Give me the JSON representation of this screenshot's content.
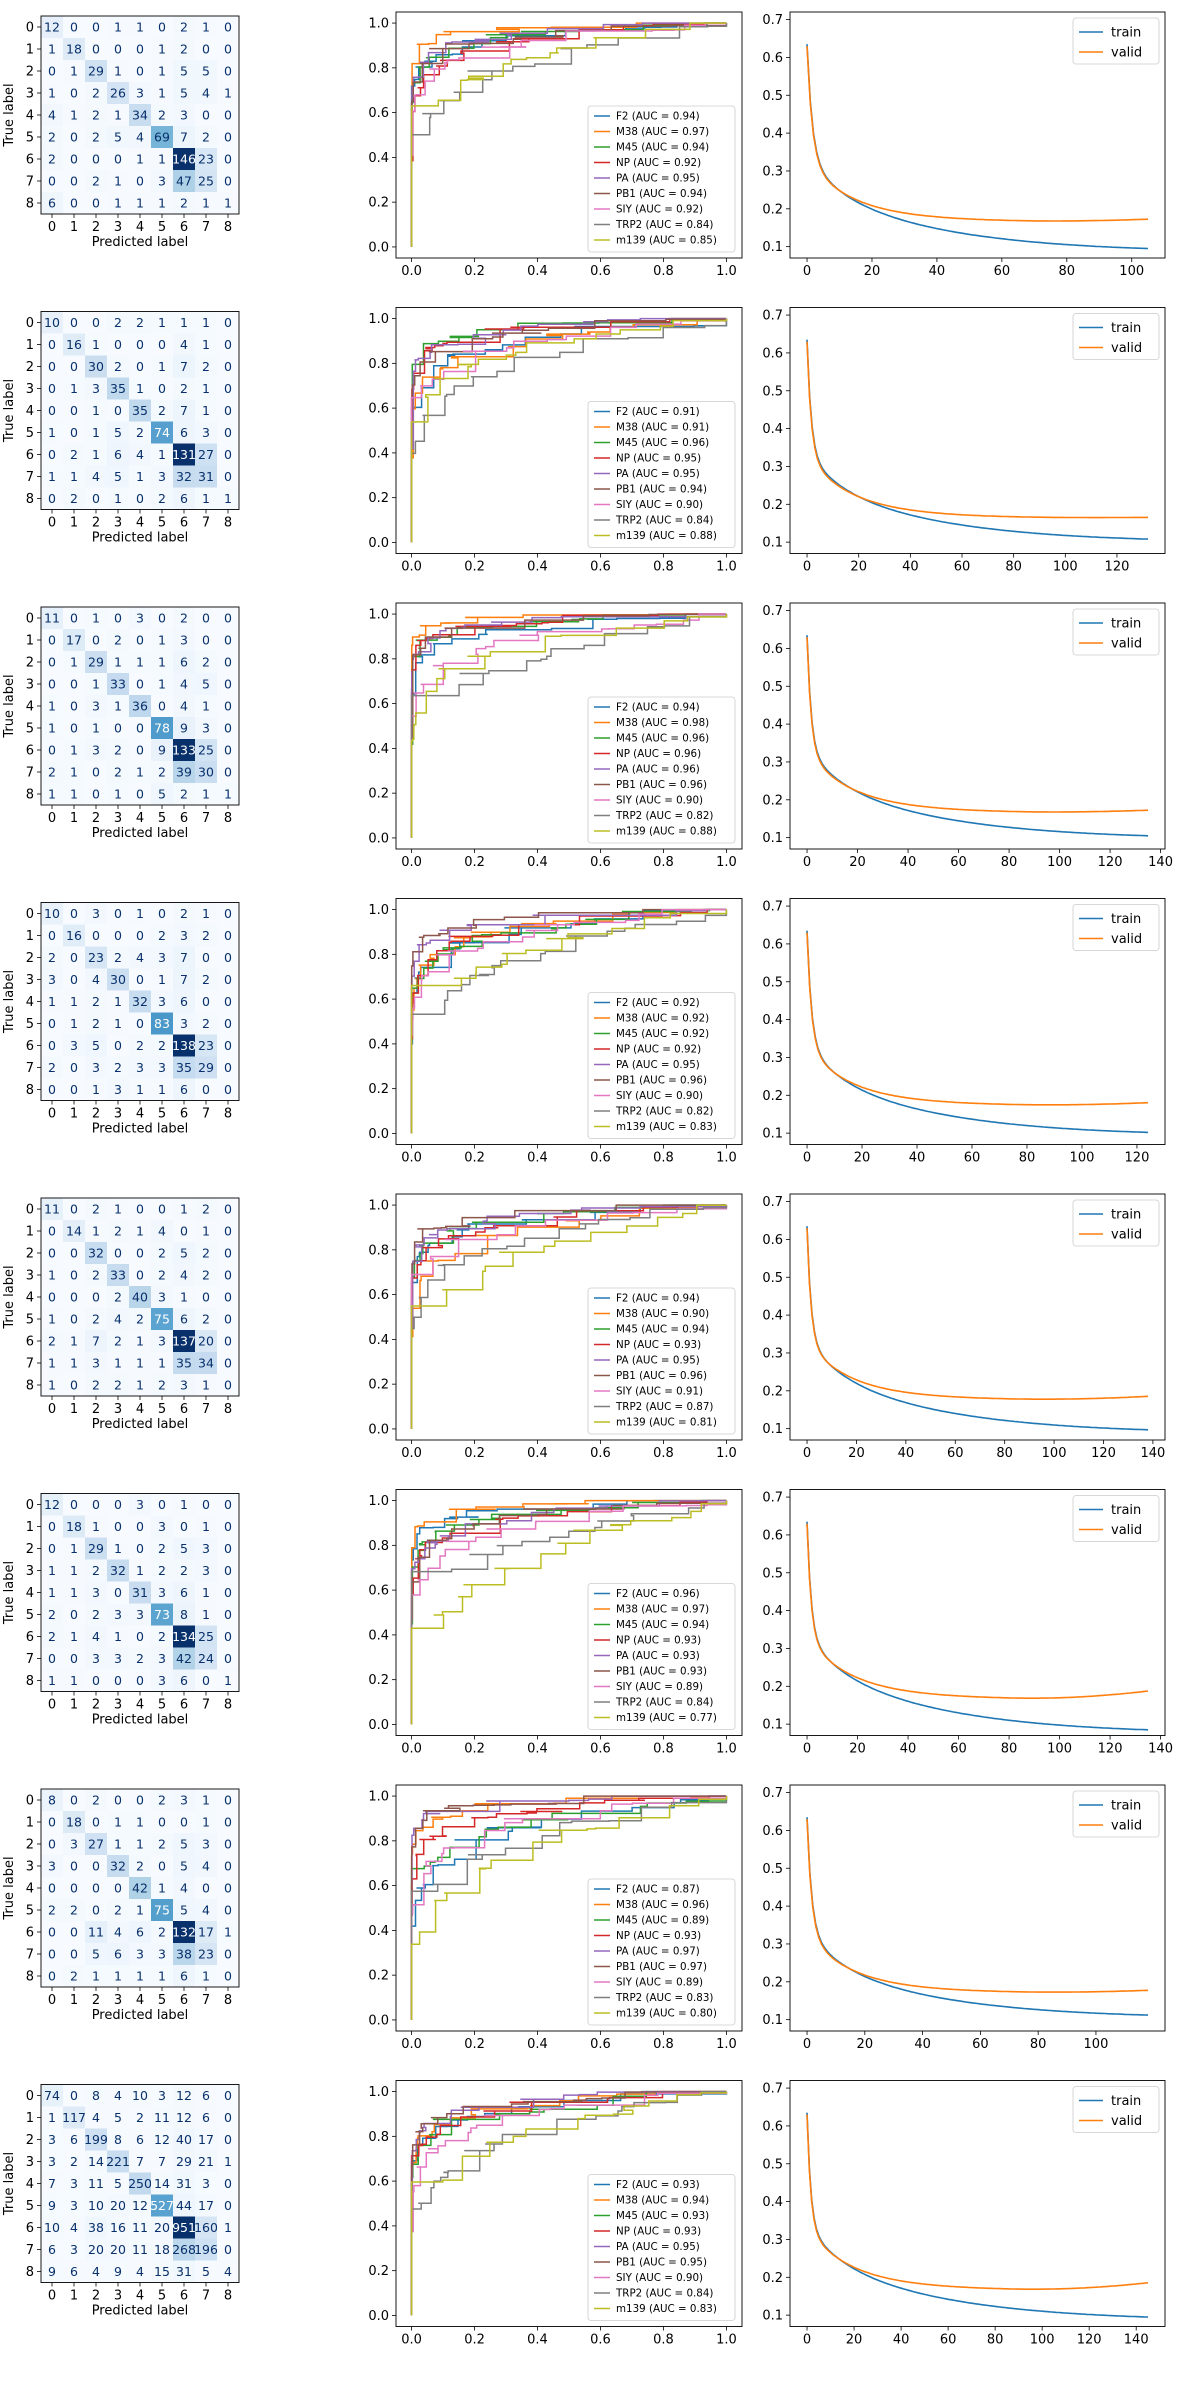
{
  "labels": {
    "true_label": "True label",
    "predicted_label": "Predicted label"
  },
  "class_ticks": [
    "0",
    "1",
    "2",
    "3",
    "4",
    "5",
    "6",
    "7",
    "8"
  ],
  "roc_classes": [
    "F2",
    "M38",
    "M45",
    "NP",
    "PA",
    "PB1",
    "SIY",
    "TRP2",
    "m139"
  ],
  "roc_colors": [
    "#1f77b4",
    "#ff7f0e",
    "#2ca02c",
    "#d62728",
    "#9467bd",
    "#8c564b",
    "#e377c2",
    "#7f7f7f",
    "#bcbd22"
  ],
  "loss_series_names": [
    "train",
    "valid"
  ],
  "loss_colors": [
    "#1f77b4",
    "#ff7f0e"
  ],
  "chart_data": [
    {
      "row": 1,
      "confusion": {
        "type": "heatmap",
        "matrix": [
          [
            12,
            0,
            0,
            1,
            1,
            0,
            2,
            1,
            0
          ],
          [
            1,
            18,
            0,
            0,
            0,
            1,
            2,
            0,
            0
          ],
          [
            0,
            1,
            29,
            1,
            0,
            1,
            5,
            5,
            0
          ],
          [
            1,
            0,
            2,
            26,
            3,
            1,
            5,
            4,
            1
          ],
          [
            4,
            1,
            2,
            1,
            34,
            2,
            3,
            0,
            0
          ],
          [
            2,
            0,
            2,
            5,
            4,
            69,
            7,
            2,
            0
          ],
          [
            2,
            0,
            0,
            0,
            1,
            1,
            146,
            23,
            0
          ],
          [
            0,
            0,
            2,
            1,
            0,
            3,
            47,
            25,
            0
          ],
          [
            6,
            0,
            0,
            1,
            1,
            1,
            2,
            1,
            1
          ]
        ]
      },
      "roc": {
        "type": "line",
        "auc": [
          "0.94",
          "0.97",
          "0.94",
          "0.92",
          "0.95",
          "0.94",
          "0.92",
          "0.84",
          "0.85"
        ]
      },
      "loss": {
        "type": "line",
        "epochs": 105,
        "xmax_tick": 100,
        "train_end": 0.095,
        "valid_min": 0.165,
        "valid_end": 0.172
      }
    },
    {
      "row": 2,
      "confusion": {
        "type": "heatmap",
        "matrix": [
          [
            10,
            0,
            0,
            2,
            2,
            1,
            1,
            1,
            0
          ],
          [
            0,
            16,
            1,
            0,
            0,
            0,
            4,
            1,
            0
          ],
          [
            0,
            0,
            30,
            2,
            0,
            1,
            7,
            2,
            0
          ],
          [
            0,
            1,
            3,
            35,
            1,
            0,
            2,
            1,
            0
          ],
          [
            0,
            0,
            1,
            0,
            35,
            2,
            7,
            1,
            0
          ],
          [
            1,
            0,
            1,
            5,
            2,
            74,
            6,
            3,
            0
          ],
          [
            0,
            2,
            1,
            6,
            4,
            1,
            131,
            27,
            0
          ],
          [
            1,
            1,
            4,
            5,
            1,
            3,
            32,
            31,
            0
          ],
          [
            0,
            2,
            0,
            1,
            0,
            2,
            6,
            1,
            1
          ]
        ]
      },
      "roc": {
        "type": "line",
        "auc": [
          "0.91",
          "0.91",
          "0.96",
          "0.95",
          "0.95",
          "0.94",
          "0.90",
          "0.84",
          "0.88"
        ]
      },
      "loss": {
        "type": "line",
        "epochs": 132,
        "xmax_tick": 120,
        "train_end": 0.108,
        "valid_min": 0.163,
        "valid_end": 0.165
      }
    },
    {
      "row": 3,
      "confusion": {
        "type": "heatmap",
        "matrix": [
          [
            11,
            0,
            1,
            0,
            3,
            0,
            2,
            0,
            0
          ],
          [
            0,
            17,
            0,
            2,
            0,
            1,
            3,
            0,
            0
          ],
          [
            0,
            1,
            29,
            1,
            1,
            1,
            6,
            2,
            0
          ],
          [
            0,
            0,
            1,
            33,
            0,
            1,
            4,
            5,
            0
          ],
          [
            1,
            0,
            3,
            1,
            36,
            0,
            4,
            1,
            0
          ],
          [
            1,
            0,
            1,
            0,
            0,
            78,
            9,
            3,
            0
          ],
          [
            0,
            1,
            3,
            2,
            0,
            9,
            133,
            25,
            0
          ],
          [
            2,
            1,
            0,
            2,
            1,
            2,
            39,
            30,
            0
          ],
          [
            1,
            1,
            0,
            1,
            0,
            5,
            2,
            1,
            1
          ]
        ]
      },
      "roc": {
        "type": "line",
        "auc": [
          "0.94",
          "0.98",
          "0.96",
          "0.96",
          "0.96",
          "0.96",
          "0.90",
          "0.82",
          "0.88"
        ]
      },
      "loss": {
        "type": "line",
        "epochs": 135,
        "xmax_tick": 140,
        "train_end": 0.105,
        "valid_min": 0.165,
        "valid_end": 0.172
      }
    },
    {
      "row": 4,
      "confusion": {
        "type": "heatmap",
        "matrix": [
          [
            10,
            0,
            3,
            0,
            1,
            0,
            2,
            1,
            0
          ],
          [
            0,
            16,
            0,
            0,
            0,
            2,
            3,
            2,
            0
          ],
          [
            2,
            0,
            23,
            2,
            4,
            3,
            7,
            0,
            0
          ],
          [
            3,
            0,
            4,
            30,
            0,
            1,
            7,
            2,
            0
          ],
          [
            1,
            1,
            2,
            1,
            32,
            3,
            6,
            0,
            0
          ],
          [
            0,
            1,
            2,
            1,
            0,
            83,
            3,
            2,
            0
          ],
          [
            0,
            3,
            5,
            0,
            2,
            2,
            138,
            23,
            0
          ],
          [
            2,
            0,
            3,
            2,
            3,
            3,
            35,
            29,
            0
          ],
          [
            0,
            0,
            1,
            3,
            1,
            1,
            6,
            0,
            0
          ]
        ]
      },
      "roc": {
        "type": "line",
        "auc": [
          "0.92",
          "0.92",
          "0.92",
          "0.92",
          "0.95",
          "0.96",
          "0.90",
          "0.82",
          "0.83"
        ]
      },
      "loss": {
        "type": "line",
        "epochs": 124,
        "xmax_tick": 120,
        "train_end": 0.102,
        "valid_min": 0.172,
        "valid_end": 0.18
      }
    },
    {
      "row": 5,
      "confusion": {
        "type": "heatmap",
        "matrix": [
          [
            11,
            0,
            2,
            1,
            0,
            0,
            1,
            2,
            0
          ],
          [
            0,
            14,
            1,
            2,
            1,
            4,
            0,
            1,
            0
          ],
          [
            0,
            0,
            32,
            0,
            0,
            2,
            5,
            2,
            0
          ],
          [
            1,
            0,
            2,
            33,
            0,
            2,
            4,
            2,
            0
          ],
          [
            0,
            0,
            0,
            2,
            40,
            3,
            1,
            0,
            0
          ],
          [
            1,
            0,
            2,
            4,
            2,
            75,
            6,
            2,
            0
          ],
          [
            2,
            1,
            7,
            2,
            1,
            3,
            137,
            20,
            0
          ],
          [
            1,
            1,
            3,
            1,
            1,
            1,
            35,
            34,
            0
          ],
          [
            1,
            0,
            2,
            2,
            1,
            2,
            3,
            1,
            0
          ]
        ]
      },
      "roc": {
        "type": "line",
        "auc": [
          "0.94",
          "0.90",
          "0.94",
          "0.93",
          "0.95",
          "0.96",
          "0.91",
          "0.87",
          "0.81"
        ]
      },
      "loss": {
        "type": "line",
        "epochs": 138,
        "xmax_tick": 140,
        "train_end": 0.097,
        "valid_min": 0.175,
        "valid_end": 0.185
      }
    },
    {
      "row": 6,
      "confusion": {
        "type": "heatmap",
        "matrix": [
          [
            12,
            0,
            0,
            0,
            3,
            0,
            1,
            0,
            0
          ],
          [
            0,
            18,
            1,
            0,
            0,
            3,
            0,
            1,
            0
          ],
          [
            0,
            1,
            29,
            1,
            0,
            2,
            5,
            3,
            0
          ],
          [
            1,
            1,
            2,
            32,
            1,
            2,
            2,
            3,
            0
          ],
          [
            1,
            1,
            3,
            0,
            31,
            3,
            6,
            1,
            0
          ],
          [
            2,
            0,
            2,
            3,
            3,
            73,
            8,
            1,
            0
          ],
          [
            2,
            1,
            4,
            1,
            0,
            2,
            134,
            25,
            0
          ],
          [
            0,
            0,
            3,
            3,
            2,
            3,
            42,
            24,
            0
          ],
          [
            1,
            1,
            0,
            0,
            0,
            3,
            6,
            0,
            1
          ]
        ]
      },
      "roc": {
        "type": "line",
        "auc": [
          "0.96",
          "0.97",
          "0.94",
          "0.93",
          "0.93",
          "0.93",
          "0.89",
          "0.84",
          "0.77"
        ]
      },
      "loss": {
        "type": "line",
        "epochs": 135,
        "xmax_tick": 140,
        "train_end": 0.085,
        "valid_min": 0.165,
        "valid_end": 0.187
      }
    },
    {
      "row": 7,
      "confusion": {
        "type": "heatmap",
        "matrix": [
          [
            8,
            0,
            2,
            0,
            0,
            2,
            3,
            1,
            0
          ],
          [
            0,
            18,
            0,
            1,
            1,
            0,
            0,
            1,
            0
          ],
          [
            0,
            3,
            27,
            1,
            1,
            2,
            5,
            3,
            0
          ],
          [
            3,
            0,
            0,
            32,
            2,
            0,
            5,
            4,
            0
          ],
          [
            0,
            0,
            0,
            0,
            42,
            1,
            4,
            0,
            0
          ],
          [
            2,
            2,
            0,
            2,
            1,
            75,
            5,
            4,
            0
          ],
          [
            0,
            0,
            11,
            4,
            6,
            2,
            132,
            17,
            1
          ],
          [
            0,
            0,
            5,
            6,
            3,
            3,
            38,
            23,
            0
          ],
          [
            0,
            2,
            1,
            1,
            1,
            1,
            6,
            1,
            0
          ]
        ]
      },
      "roc": {
        "type": "line",
        "auc": [
          "0.87",
          "0.96",
          "0.89",
          "0.93",
          "0.97",
          "0.97",
          "0.89",
          "0.83",
          "0.80"
        ]
      },
      "loss": {
        "type": "line",
        "epochs": 118,
        "xmax_tick": 100,
        "train_end": 0.112,
        "valid_min": 0.17,
        "valid_end": 0.177
      }
    },
    {
      "row": 8,
      "confusion": {
        "type": "heatmap",
        "matrix": [
          [
            74,
            0,
            8,
            4,
            10,
            3,
            12,
            6,
            0
          ],
          [
            1,
            117,
            4,
            5,
            2,
            11,
            12,
            6,
            0
          ],
          [
            3,
            6,
            199,
            8,
            6,
            12,
            40,
            17,
            0
          ],
          [
            3,
            2,
            14,
            221,
            7,
            7,
            29,
            21,
            1
          ],
          [
            7,
            3,
            11,
            5,
            250,
            14,
            31,
            3,
            0
          ],
          [
            9,
            3,
            10,
            20,
            12,
            527,
            44,
            17,
            0
          ],
          [
            10,
            4,
            38,
            16,
            11,
            20,
            951,
            160,
            1
          ],
          [
            6,
            3,
            20,
            20,
            11,
            18,
            268,
            196,
            0
          ],
          [
            9,
            6,
            4,
            9,
            4,
            15,
            31,
            5,
            4
          ]
        ]
      },
      "roc": {
        "type": "line",
        "auc": [
          "0.93",
          "0.94",
          "0.93",
          "0.93",
          "0.95",
          "0.95",
          "0.90",
          "0.84",
          "0.83"
        ]
      },
      "loss": {
        "type": "line",
        "epochs": 145,
        "xmax_tick": 140,
        "train_end": 0.095,
        "valid_min": 0.165,
        "valid_end": 0.185
      }
    }
  ]
}
